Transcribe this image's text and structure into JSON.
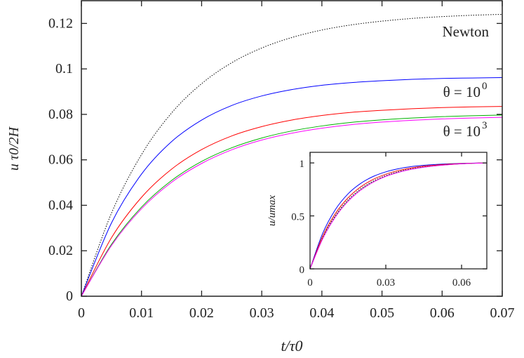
{
  "chart_data": [
    {
      "type": "line",
      "xlabel": "t/τ0",
      "ylabel": "u τ0/2H",
      "xlim": [
        0,
        0.07
      ],
      "ylim": [
        0,
        0.13
      ],
      "xticks": [
        "0",
        "0.01",
        "0.02",
        "0.03",
        "0.04",
        "0.05",
        "0.06",
        "0.07"
      ],
      "yticks": [
        "0",
        "0.02",
        "0.04",
        "0.06",
        "0.08",
        "0.1",
        "0.12"
      ],
      "grid": false,
      "x": [
        0,
        0.005,
        0.01,
        0.015,
        0.02,
        0.025,
        0.03,
        0.035,
        0.04,
        0.045,
        0.05,
        0.055,
        0.06,
        0.065,
        0.07
      ],
      "series": [
        {
          "name": "Newton",
          "color": "#000000",
          "dash": "dotted",
          "values": [
            0,
            0.0365,
            0.0623,
            0.0806,
            0.0935,
            0.1027,
            0.1092,
            0.1138,
            0.1171,
            0.1194,
            0.121,
            0.1222,
            0.123,
            0.1236,
            0.124
          ]
        },
        {
          "color": "#0000ff",
          "values": [
            0,
            0.0322,
            0.0537,
            0.068,
            0.0775,
            0.0839,
            0.0881,
            0.0909,
            0.0928,
            0.094,
            0.0948,
            0.0954,
            0.0958,
            0.096,
            0.0962
          ]
        },
        {
          "color": "#ff0000",
          "values": [
            0,
            0.0257,
            0.0435,
            0.0559,
            0.0645,
            0.0705,
            0.0746,
            0.0775,
            0.0795,
            0.0809,
            0.0818,
            0.0825,
            0.083,
            0.0833,
            0.0835
          ]
        },
        {
          "color": "#00b000",
          "values": [
            0,
            0.0228,
            0.0392,
            0.0509,
            0.0593,
            0.0653,
            0.0696,
            0.0727,
            0.0749,
            0.0765,
            0.0776,
            0.0784,
            0.079,
            0.0794,
            0.0797
          ]
        },
        {
          "color": "#ff00ff",
          "values": [
            0,
            0.0223,
            0.0385,
            0.0501,
            0.0584,
            0.0644,
            0.0687,
            0.0717,
            0.0739,
            0.0755,
            0.0766,
            0.0774,
            0.078,
            0.0784,
            0.0787
          ]
        }
      ],
      "annotations": {
        "newton": "Newton",
        "theta_lo_prefix": "θ = 10",
        "theta_lo_exp": "0",
        "theta_hi_prefix": "θ = 10",
        "theta_hi_exp": "3"
      }
    },
    {
      "type": "line",
      "inset": true,
      "ylabel": "u/umax",
      "xlim": [
        0,
        0.07
      ],
      "ylim": [
        0,
        1.1
      ],
      "xticks": [
        "0",
        "0.03",
        "0.06"
      ],
      "yticks": [
        "0",
        "0.5",
        "1"
      ],
      "normalized": true
    }
  ]
}
